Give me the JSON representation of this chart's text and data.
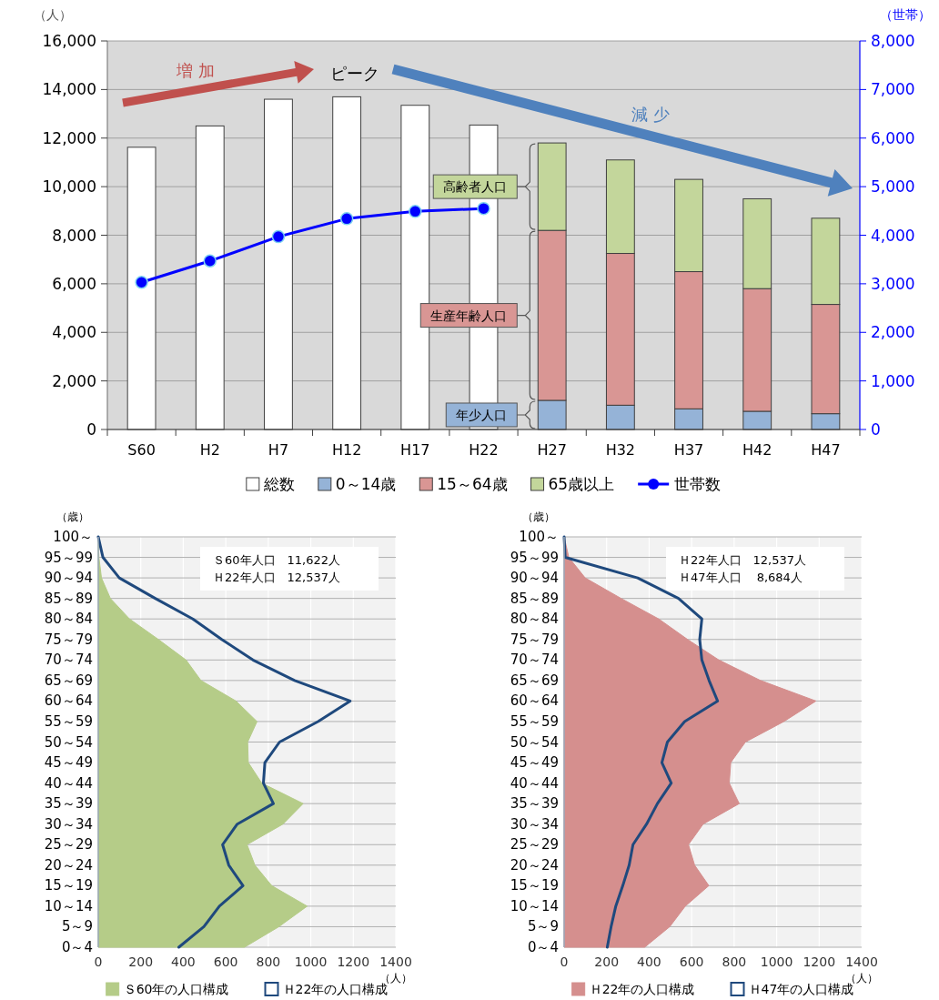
{
  "chart_data": [
    {
      "type": "bar",
      "categories": [
        "S60",
        "H2",
        "H7",
        "H12",
        "H17",
        "H22",
        "H27",
        "H32",
        "H37",
        "H42",
        "H47"
      ],
      "ylabel": "（人）",
      "y2label": "（世帯）",
      "stacked": true,
      "grid": "y",
      "legend": "bottom",
      "ylim": [
        0,
        16000
      ],
      "yticks": [
        0,
        {
          "value": 2000,
          "label": "2,000"
        },
        {
          "value": 4000,
          "label": "4,000"
        },
        {
          "value": 6000,
          "label": "6,000"
        },
        {
          "value": 8000,
          "label": "8,000"
        },
        {
          "value": 10000,
          "label": "10,000"
        },
        {
          "value": 12000,
          "label": "12,000"
        },
        {
          "value": 14000,
          "label": "14,000"
        },
        {
          "value": 16000,
          "label": "16,000"
        }
      ],
      "y2lim": [
        0,
        8000
      ],
      "y2ticks": [
        0,
        {
          "value": 1000,
          "label": "1,000"
        },
        {
          "value": 2000,
          "label": "2,000"
        },
        {
          "value": 3000,
          "label": "3,000"
        },
        {
          "value": 4000,
          "label": "4,000"
        },
        {
          "value": 5000,
          "label": "5,000"
        },
        {
          "value": 6000,
          "label": "6,000"
        },
        {
          "value": 7000,
          "label": "7,000"
        },
        {
          "value": 8000,
          "label": "8,000"
        }
      ],
      "series": [
        {
          "name": "総数",
          "color": "#ffffff",
          "values": [
            11622,
            12500,
            13600,
            13700,
            13350,
            12537,
            null,
            null,
            null,
            null,
            null
          ]
        },
        {
          "name": "0～14歳",
          "color": "#95b3d7",
          "values": [
            null,
            null,
            null,
            null,
            null,
            null,
            1200,
            1000,
            850,
            750,
            650
          ]
        },
        {
          "name": "15～64歳",
          "color": "#d99694",
          "values": [
            null,
            null,
            null,
            null,
            null,
            null,
            7000,
            6250,
            5650,
            5050,
            4500
          ]
        },
        {
          "name": "65歳以上",
          "color": "#c3d69b",
          "values": [
            null,
            null,
            null,
            null,
            null,
            null,
            3600,
            3850,
            3800,
            3700,
            3550
          ]
        },
        {
          "name": "世帯数",
          "type": "line",
          "axis": "y2",
          "marker": "circle",
          "color": "#0000ff",
          "values": [
            3030,
            3470,
            3970,
            4340,
            4490,
            4550,
            null,
            null,
            null,
            null,
            null
          ]
        }
      ],
      "annotations": [
        "増 加",
        "ピーク",
        "減 少",
        "高齢者人口",
        "生産年齢人口",
        "年少人口"
      ]
    },
    {
      "type": "area",
      "orientation": "horizontal",
      "categories": [
        "100～",
        "95～99",
        "90～94",
        "85～89",
        "80～84",
        "75～79",
        "70～74",
        "65～69",
        "60～64",
        "55～59",
        "50～54",
        "45～49",
        "40～44",
        "35～39",
        "30～34",
        "25～29",
        "20～24",
        "15～19",
        "10～14",
        "5～9",
        "0～4"
      ],
      "xlabel": "（人）",
      "ylabel": "（歳）",
      "grid": true,
      "legend": "bottom",
      "xlim": [
        0,
        1400
      ],
      "xticks": [
        0,
        200,
        400,
        600,
        800,
        1000,
        1200,
        1400
      ],
      "series": [
        {
          "name": "Ｓ60年の人口構成",
          "color": "#b5cc88",
          "values": [
            0,
            3,
            15,
            57,
            147,
            283,
            413,
            483,
            648,
            747,
            703,
            706,
            769,
            964,
            869,
            700,
            737,
            816,
            983,
            850,
            688
          ]
        },
        {
          "name": "Ｈ22年の人口構成",
          "type": "line",
          "color": "#1f497d",
          "values": [
            0,
            22,
            99,
            268,
            445,
            581,
            728,
            924,
            1185,
            1034,
            853,
            784,
            777,
            824,
            654,
            585,
            614,
            681,
            570,
            497,
            379
          ]
        }
      ],
      "annotations": [
        "Ｓ60年人口　11,622人",
        "Ｈ22年人口　12,537人"
      ]
    },
    {
      "type": "area",
      "orientation": "horizontal",
      "categories": [
        "100～",
        "95～99",
        "90～94",
        "85～89",
        "80～84",
        "75～79",
        "70～74",
        "65～69",
        "60～64",
        "55～59",
        "50～54",
        "45～49",
        "40～44",
        "35～39",
        "30～34",
        "25～29",
        "20～24",
        "15～19",
        "10～14",
        "5～9",
        "0～4"
      ],
      "xlabel": "（人）",
      "ylabel": "（歳）",
      "grid": true,
      "legend": "bottom",
      "xlim": [
        0,
        1400
      ],
      "xticks": [
        0,
        200,
        400,
        600,
        800,
        1000,
        1200,
        1400
      ],
      "series": [
        {
          "name": "Ｈ22年の人口構成",
          "color": "#d58f8e",
          "values": [
            0,
            22,
            99,
            268,
            445,
            581,
            728,
            924,
            1185,
            1034,
            853,
            784,
            777,
            824,
            654,
            585,
            614,
            681,
            570,
            497,
            379
          ]
        },
        {
          "name": "Ｈ47年の人口構成",
          "type": "line",
          "color": "#1f497d",
          "values": [
            0,
            5,
            346,
            538,
            648,
            638,
            648,
            682,
            722,
            567,
            486,
            460,
            504,
            439,
            388,
            324,
            306,
            276,
            243,
            221,
            203
          ]
        }
      ],
      "annotations": [
        "Ｈ22年人口　12,537人",
        "Ｈ47年人口　 8,684人"
      ]
    }
  ]
}
